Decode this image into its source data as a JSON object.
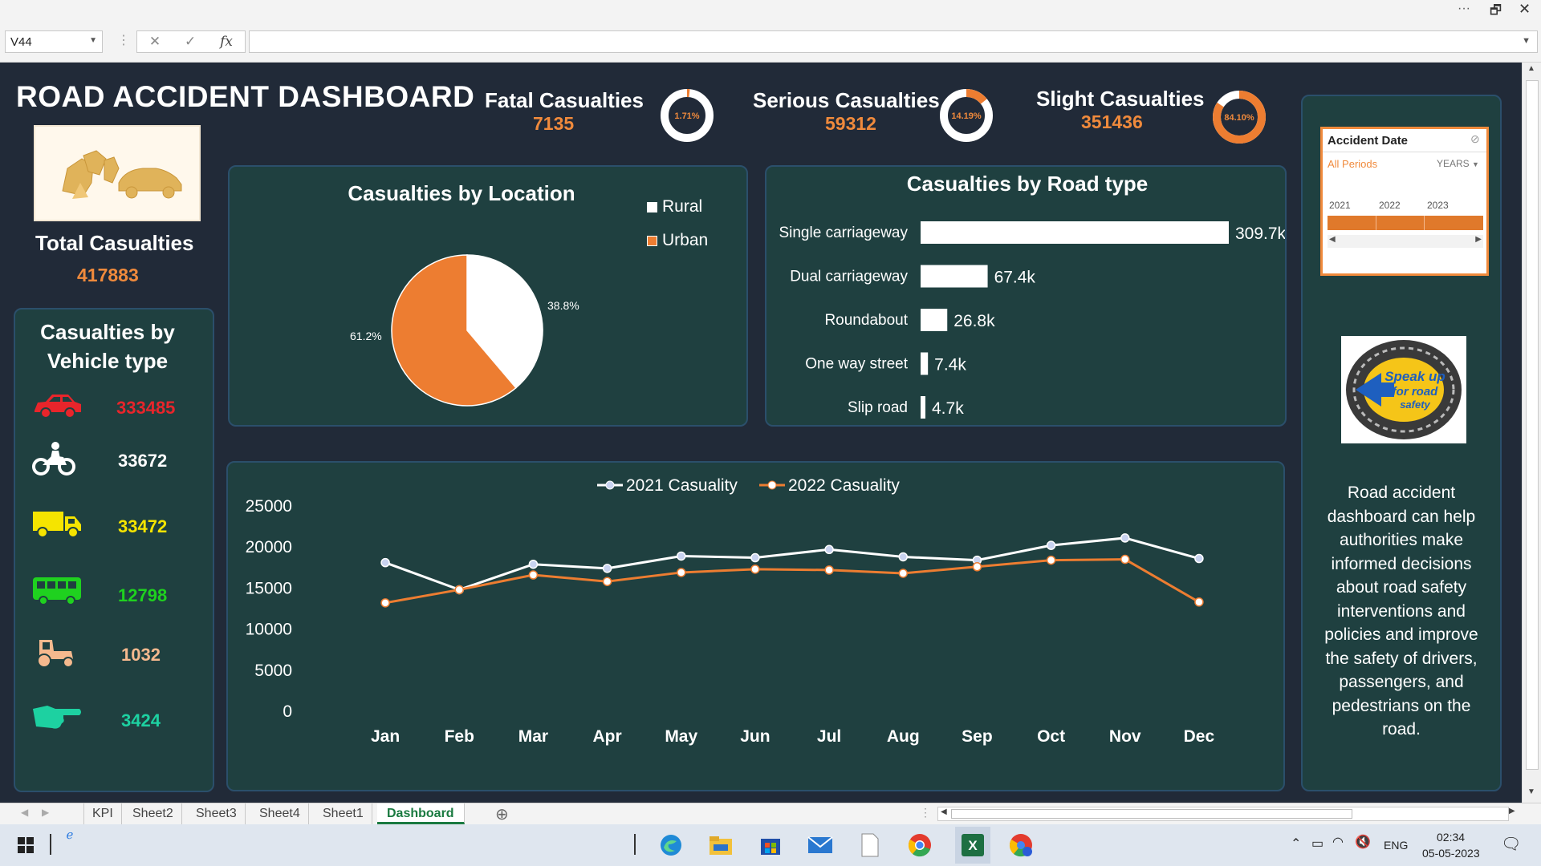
{
  "window": {
    "dots": "···",
    "restore": "🗗",
    "close": "✕"
  },
  "formula_bar": {
    "cell_ref": "V44",
    "fx": "fx",
    "value": ""
  },
  "dashboard": {
    "title": "ROAD ACCIDENT DASHBOARD",
    "kpis": [
      {
        "label": "Fatal Casualties",
        "value": "7135",
        "pct": "1.71%",
        "fraction": 0.0171
      },
      {
        "label": "Serious Casualties",
        "value": "59312",
        "pct": "14.19%",
        "fraction": 0.1419
      },
      {
        "label": "Slight Casualties",
        "value": "351436",
        "pct": "84.10%",
        "fraction": 0.841
      }
    ],
    "total": {
      "label": "Total Casualties",
      "value": "417883"
    },
    "vehicle_panel": {
      "title_line1": "Casualties by",
      "title_line2": "Vehicle type",
      "items": [
        {
          "icon": "car-icon",
          "value": "333485",
          "color": "#e8252b"
        },
        {
          "icon": "motorcycle-icon",
          "value": "33672",
          "color": "#ffffff"
        },
        {
          "icon": "truck-icon",
          "value": "33472",
          "color": "#f5e400"
        },
        {
          "icon": "bus-icon",
          "value": "12798",
          "color": "#1fd11f"
        },
        {
          "icon": "tractor-icon",
          "value": "1032",
          "color": "#f5b98e"
        },
        {
          "icon": "pointing-hand-icon",
          "value": "3424",
          "color": "#1dd1a1"
        }
      ]
    },
    "slicer": {
      "title": "Accident Date",
      "selection": "All Periods",
      "level": "YEARS",
      "years": [
        "2021",
        "2022",
        "2023"
      ]
    },
    "logo_text": {
      "line1": "Speak up",
      "line2": "for road",
      "line3": "safety"
    },
    "description": "Road accident dashboard can help authorities make informed decisions about road safety interventions and policies and improve the safety of drivers, passengers, and pedestrians on the road."
  },
  "chart_data": [
    {
      "type": "pie",
      "title": "Casualties by Location",
      "categories": [
        "Rural",
        "Urban"
      ],
      "values": [
        38.8,
        61.2
      ],
      "labels": [
        "38.8%",
        "61.2%"
      ],
      "colors": [
        "#ffffff",
        "#ed7d31"
      ],
      "legend": "top-right"
    },
    {
      "type": "bar",
      "orientation": "horizontal",
      "title": "Casualties by Road type",
      "categories": [
        "Single carriageway",
        "Dual carriageway",
        "Roundabout",
        "One way street",
        "Slip road"
      ],
      "values": [
        309.7,
        67.4,
        26.8,
        7.4,
        4.7
      ],
      "labels": [
        "309.7k",
        "67.4k",
        "26.8k",
        "7.4k",
        "4.7k"
      ],
      "xlim": [
        0,
        309.7
      ]
    },
    {
      "type": "line",
      "categories": [
        "Jan",
        "Feb",
        "Mar",
        "Apr",
        "May",
        "Jun",
        "Jul",
        "Aug",
        "Sep",
        "Oct",
        "Nov",
        "Dec"
      ],
      "series": [
        {
          "name": "2021 Casuality",
          "color": "#ffffff",
          "marker": "#c9d3f0",
          "values": [
            18100,
            14800,
            17900,
            17400,
            18900,
            18700,
            19700,
            18800,
            18400,
            20200,
            21100,
            18600
          ]
        },
        {
          "name": "2022 Casuality",
          "color": "#ed7d31",
          "marker": "#ffffff",
          "values": [
            13200,
            14800,
            16600,
            15800,
            16900,
            17300,
            17200,
            16800,
            17600,
            18400,
            18500,
            13300
          ]
        }
      ],
      "ylim": [
        0,
        25000
      ],
      "yticks": [
        "25000",
        "20000",
        "15000",
        "10000",
        "5000",
        "0"
      ],
      "legend": "top-center"
    }
  ],
  "sheets": {
    "tabs": [
      "KPI",
      "Sheet2",
      "Sheet3",
      "Sheet4",
      "Sheet1",
      "Dashboard"
    ],
    "active": "Dashboard"
  },
  "taskbar": {
    "time": "02:34",
    "date": "05-05-2023",
    "lang": "ENG"
  }
}
